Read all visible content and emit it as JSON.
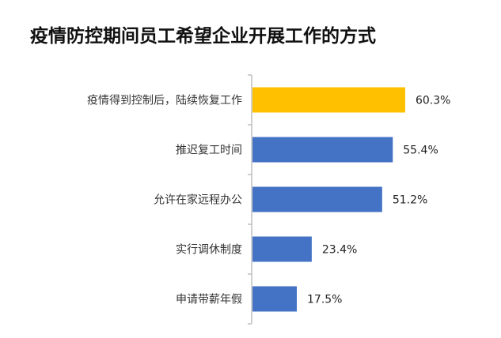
{
  "chart_data": {
    "type": "bar",
    "orientation": "horizontal",
    "title": "疫情防控期间员工希望企业开展工作的方式",
    "categories": [
      "疫情得到控制后，陆续恢复工作",
      "推迟复工时间",
      "允许在家远程办公",
      "实行调休制度",
      "申请带薪年假"
    ],
    "values": [
      60.3,
      55.4,
      51.2,
      23.4,
      17.5
    ],
    "data_labels": [
      "60.3%",
      "55.4%",
      "51.2%",
      "23.4%",
      "17.5%"
    ],
    "colors": [
      "#FFC000",
      "#4472C4",
      "#4472C4",
      "#4472C4",
      "#4472C4"
    ],
    "xlim": [
      0,
      100
    ],
    "grid": false,
    "legend": "none"
  }
}
